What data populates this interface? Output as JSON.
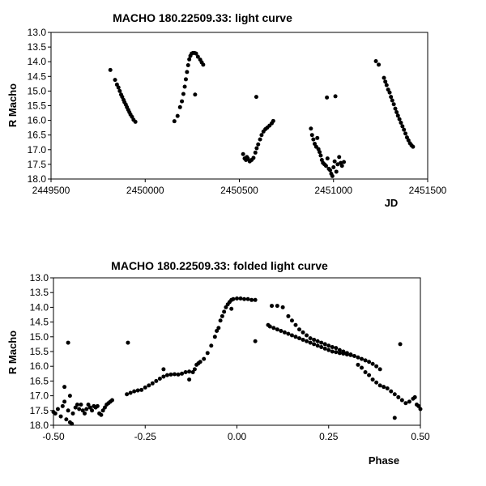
{
  "chart_data": [
    {
      "type": "scatter",
      "title": "MACHO 180.22509.33: light curve",
      "xlabel": "JD",
      "ylabel": "R Macho",
      "xlim": [
        2449500,
        2451500
      ],
      "ylim": [
        13.0,
        18.0
      ],
      "y_inverted": true,
      "xticks": [
        "2449500",
        "2450000",
        "2450500",
        "2451000",
        "2451500"
      ],
      "yticks": [
        "13.0",
        "13.5",
        "14.0",
        "14.5",
        "15.0",
        "15.5",
        "16.0",
        "16.5",
        "17.0",
        "17.5",
        "18.0"
      ],
      "grid": false,
      "points": [
        [
          2449815,
          14.28
        ],
        [
          2449840,
          14.62
        ],
        [
          2449850,
          14.78
        ],
        [
          2449858,
          14.88
        ],
        [
          2449865,
          15.0
        ],
        [
          2449872,
          15.12
        ],
        [
          2449878,
          15.2
        ],
        [
          2449885,
          15.3
        ],
        [
          2449890,
          15.38
        ],
        [
          2449897,
          15.46
        ],
        [
          2449903,
          15.55
        ],
        [
          2449910,
          15.64
        ],
        [
          2449916,
          15.72
        ],
        [
          2449922,
          15.8
        ],
        [
          2449930,
          15.88
        ],
        [
          2449938,
          15.98
        ],
        [
          2449948,
          16.05
        ],
        [
          2450155,
          16.03
        ],
        [
          2450172,
          15.85
        ],
        [
          2450185,
          15.55
        ],
        [
          2450195,
          15.35
        ],
        [
          2450203,
          15.1
        ],
        [
          2450210,
          14.85
        ],
        [
          2450216,
          14.6
        ],
        [
          2450222,
          14.35
        ],
        [
          2450228,
          14.12
        ],
        [
          2450234,
          13.92
        ],
        [
          2450240,
          13.8
        ],
        [
          2450247,
          13.72
        ],
        [
          2450254,
          13.7
        ],
        [
          2450262,
          13.7
        ],
        [
          2450270,
          13.72
        ],
        [
          2450280,
          13.83
        ],
        [
          2450292,
          13.93
        ],
        [
          2450300,
          14.02
        ],
        [
          2450308,
          14.1
        ],
        [
          2450265,
          15.12
        ],
        [
          2450590,
          15.2
        ],
        [
          2450520,
          17.15
        ],
        [
          2450528,
          17.3
        ],
        [
          2450535,
          17.35
        ],
        [
          2450545,
          17.3
        ],
        [
          2450555,
          17.4
        ],
        [
          2450565,
          17.35
        ],
        [
          2450575,
          17.28
        ],
        [
          2450585,
          17.1
        ],
        [
          2450592,
          16.95
        ],
        [
          2450600,
          16.82
        ],
        [
          2450610,
          16.65
        ],
        [
          2450618,
          16.5
        ],
        [
          2450628,
          16.38
        ],
        [
          2450638,
          16.3
        ],
        [
          2450648,
          16.25
        ],
        [
          2450660,
          16.18
        ],
        [
          2450672,
          16.1
        ],
        [
          2450680,
          16.02
        ],
        [
          2450540,
          17.25
        ],
        [
          2450965,
          15.22
        ],
        [
          2451010,
          15.18
        ],
        [
          2450880,
          16.28
        ],
        [
          2450886,
          16.5
        ],
        [
          2450893,
          16.65
        ],
        [
          2450900,
          16.8
        ],
        [
          2450908,
          16.9
        ],
        [
          2450914,
          16.6
        ],
        [
          2450920,
          16.98
        ],
        [
          2450926,
          17.08
        ],
        [
          2450932,
          17.2
        ],
        [
          2450938,
          17.35
        ],
        [
          2450944,
          17.45
        ],
        [
          2450952,
          17.5
        ],
        [
          2450960,
          17.55
        ],
        [
          2450968,
          17.3
        ],
        [
          2450975,
          17.65
        ],
        [
          2450982,
          17.7
        ],
        [
          2450988,
          17.82
        ],
        [
          2450994,
          17.9
        ],
        [
          2451000,
          17.6
        ],
        [
          2451006,
          17.4
        ],
        [
          2451015,
          17.75
        ],
        [
          2451022,
          17.5
        ],
        [
          2451030,
          17.25
        ],
        [
          2451038,
          17.45
        ],
        [
          2451045,
          17.55
        ],
        [
          2451055,
          17.42
        ],
        [
          2451225,
          13.98
        ],
        [
          2451240,
          14.1
        ],
        [
          2451268,
          14.55
        ],
        [
          2451275,
          14.68
        ],
        [
          2451282,
          14.8
        ],
        [
          2451290,
          14.95
        ],
        [
          2451298,
          15.05
        ],
        [
          2451305,
          15.2
        ],
        [
          2451312,
          15.32
        ],
        [
          2451320,
          15.45
        ],
        [
          2451328,
          15.6
        ],
        [
          2451335,
          15.72
        ],
        [
          2451342,
          15.84
        ],
        [
          2451350,
          15.96
        ],
        [
          2451358,
          16.08
        ],
        [
          2451366,
          16.2
        ],
        [
          2451374,
          16.32
        ],
        [
          2451382,
          16.45
        ],
        [
          2451390,
          16.58
        ],
        [
          2451398,
          16.68
        ],
        [
          2451406,
          16.78
        ],
        [
          2451414,
          16.85
        ],
        [
          2451422,
          16.9
        ]
      ]
    },
    {
      "type": "scatter",
      "title": "MACHO 180.22509.33: folded light curve",
      "xlabel": "Phase",
      "ylabel": "R Macho",
      "xlim": [
        -0.5,
        0.5
      ],
      "ylim": [
        13.0,
        18.0
      ],
      "y_inverted": true,
      "xticks": [
        "-0.50",
        "-0.25",
        "0.00",
        "0.25",
        "0.50"
      ],
      "yticks": [
        "13.0",
        "13.5",
        "14.0",
        "14.5",
        "15.0",
        "15.5",
        "16.0",
        "16.5",
        "17.0",
        "17.5",
        "18.0"
      ],
      "grid": false,
      "points": [
        [
          -0.5,
          17.55
        ],
        [
          -0.495,
          17.6
        ],
        [
          -0.488,
          17.45
        ],
        [
          -0.48,
          17.7
        ],
        [
          -0.475,
          17.35
        ],
        [
          -0.47,
          17.2
        ],
        [
          -0.465,
          17.8
        ],
        [
          -0.46,
          17.5
        ],
        [
          -0.455,
          17.9
        ],
        [
          -0.45,
          17.95
        ],
        [
          -0.447,
          17.6
        ],
        [
          -0.44,
          17.4
        ],
        [
          -0.435,
          17.3
        ],
        [
          -0.43,
          17.45
        ],
        [
          -0.425,
          17.3
        ],
        [
          -0.42,
          17.5
        ],
        [
          -0.415,
          17.6
        ],
        [
          -0.41,
          17.45
        ],
        [
          -0.405,
          17.3
        ],
        [
          -0.4,
          17.4
        ],
        [
          -0.395,
          17.5
        ],
        [
          -0.39,
          17.35
        ],
        [
          -0.385,
          17.4
        ],
        [
          -0.38,
          17.35
        ],
        [
          -0.375,
          17.6
        ],
        [
          -0.37,
          17.65
        ],
        [
          -0.365,
          17.5
        ],
        [
          -0.36,
          17.4
        ],
        [
          -0.355,
          17.3
        ],
        [
          -0.35,
          17.25
        ],
        [
          -0.345,
          17.2
        ],
        [
          -0.34,
          17.15
        ],
        [
          -0.455,
          17.0
        ],
        [
          -0.47,
          16.7
        ],
        [
          -0.46,
          15.2
        ],
        [
          -0.297,
          15.2
        ],
        [
          -0.3,
          16.95
        ],
        [
          -0.29,
          16.9
        ],
        [
          -0.28,
          16.85
        ],
        [
          -0.27,
          16.82
        ],
        [
          -0.26,
          16.8
        ],
        [
          -0.25,
          16.72
        ],
        [
          -0.24,
          16.65
        ],
        [
          -0.23,
          16.58
        ],
        [
          -0.22,
          16.5
        ],
        [
          -0.21,
          16.42
        ],
        [
          -0.2,
          16.35
        ],
        [
          -0.19,
          16.3
        ],
        [
          -0.18,
          16.28
        ],
        [
          -0.17,
          16.27
        ],
        [
          -0.16,
          16.28
        ],
        [
          -0.15,
          16.25
        ],
        [
          -0.14,
          16.2
        ],
        [
          -0.13,
          16.18
        ],
        [
          -0.12,
          16.2
        ],
        [
          -0.115,
          16.1
        ],
        [
          -0.11,
          15.95
        ],
        [
          -0.105,
          15.9
        ],
        [
          -0.1,
          15.85
        ],
        [
          -0.09,
          15.75
        ],
        [
          -0.08,
          15.55
        ],
        [
          -0.07,
          15.3
        ],
        [
          -0.06,
          15.0
        ],
        [
          -0.055,
          14.8
        ],
        [
          -0.05,
          14.7
        ],
        [
          -0.045,
          14.45
        ],
        [
          -0.04,
          14.3
        ],
        [
          -0.035,
          14.15
        ],
        [
          -0.03,
          14.0
        ],
        [
          -0.025,
          13.9
        ],
        [
          -0.02,
          13.82
        ],
        [
          -0.015,
          13.75
        ],
        [
          -0.01,
          13.72
        ],
        [
          0.0,
          13.7
        ],
        [
          0.01,
          13.7
        ],
        [
          0.02,
          13.72
        ],
        [
          0.03,
          13.72
        ],
        [
          0.04,
          13.75
        ],
        [
          0.05,
          13.75
        ],
        [
          -0.13,
          16.45
        ],
        [
          -0.2,
          16.1
        ],
        [
          -0.015,
          14.05
        ],
        [
          0.05,
          15.15
        ],
        [
          0.085,
          14.6
        ],
        [
          0.09,
          14.65
        ],
        [
          0.1,
          14.7
        ],
        [
          0.11,
          14.75
        ],
        [
          0.12,
          14.8
        ],
        [
          0.13,
          14.85
        ],
        [
          0.14,
          14.9
        ],
        [
          0.15,
          14.95
        ],
        [
          0.16,
          15.0
        ],
        [
          0.17,
          15.05
        ],
        [
          0.18,
          15.1
        ],
        [
          0.19,
          15.15
        ],
        [
          0.2,
          15.2
        ],
        [
          0.21,
          15.25
        ],
        [
          0.22,
          15.3
        ],
        [
          0.23,
          15.35
        ],
        [
          0.24,
          15.4
        ],
        [
          0.25,
          15.45
        ],
        [
          0.26,
          15.5
        ],
        [
          0.27,
          15.52
        ],
        [
          0.28,
          15.55
        ],
        [
          0.29,
          15.57
        ],
        [
          0.3,
          15.6
        ],
        [
          0.31,
          15.62
        ],
        [
          0.095,
          13.95
        ],
        [
          0.11,
          13.95
        ],
        [
          0.125,
          14.0
        ],
        [
          0.14,
          14.3
        ],
        [
          0.15,
          14.45
        ],
        [
          0.16,
          14.6
        ],
        [
          0.17,
          14.75
        ],
        [
          0.18,
          14.85
        ],
        [
          0.19,
          14.95
        ],
        [
          0.2,
          15.05
        ],
        [
          0.21,
          15.1
        ],
        [
          0.22,
          15.15
        ],
        [
          0.23,
          15.2
        ],
        [
          0.24,
          15.25
        ],
        [
          0.25,
          15.3
        ],
        [
          0.26,
          15.35
        ],
        [
          0.27,
          15.38
        ],
        [
          0.28,
          15.45
        ],
        [
          0.29,
          15.5
        ],
        [
          0.3,
          15.55
        ],
        [
          0.31,
          15.6
        ],
        [
          0.32,
          15.65
        ],
        [
          0.33,
          15.7
        ],
        [
          0.34,
          15.75
        ],
        [
          0.35,
          15.8
        ],
        [
          0.36,
          15.85
        ],
        [
          0.37,
          15.92
        ],
        [
          0.38,
          16.0
        ],
        [
          0.39,
          16.1
        ],
        [
          0.33,
          15.95
        ],
        [
          0.34,
          16.05
        ],
        [
          0.35,
          16.2
        ],
        [
          0.36,
          16.3
        ],
        [
          0.37,
          16.45
        ],
        [
          0.38,
          16.55
        ],
        [
          0.39,
          16.65
        ],
        [
          0.4,
          16.7
        ],
        [
          0.41,
          16.75
        ],
        [
          0.42,
          16.85
        ],
        [
          0.43,
          16.95
        ],
        [
          0.44,
          17.05
        ],
        [
          0.45,
          17.15
        ],
        [
          0.46,
          17.25
        ],
        [
          0.47,
          17.2
        ],
        [
          0.48,
          17.1
        ],
        [
          0.49,
          17.3
        ],
        [
          0.5,
          17.45
        ],
        [
          0.43,
          17.75
        ],
        [
          0.445,
          15.25
        ],
        [
          0.495,
          17.35
        ],
        [
          0.485,
          17.05
        ]
      ]
    }
  ]
}
